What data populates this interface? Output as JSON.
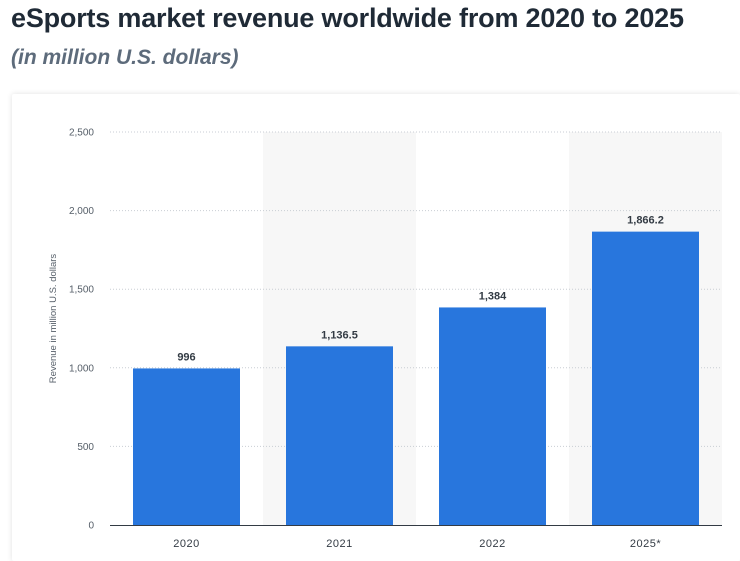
{
  "header": {
    "title": "eSports market revenue worldwide from 2020 to 2025",
    "subtitle": "(in million U.S. dollars)"
  },
  "chart_data": {
    "type": "bar",
    "categories": [
      "2020",
      "2021",
      "2022",
      "2025*"
    ],
    "values": [
      996,
      1136.5,
      1384,
      1866.2
    ],
    "value_labels": [
      "996",
      "1,136.5",
      "1,384",
      "1,866.2"
    ],
    "title": "eSports market revenue worldwide from 2020 to 2025",
    "subtitle": "(in million U.S. dollars)",
    "xlabel": "",
    "ylabel": "Revenue in million U.S. dollars",
    "ylim": [
      0,
      2500
    ],
    "yticks": [
      0,
      500,
      1000,
      1500,
      2000,
      2500
    ],
    "ytick_labels": [
      "0",
      "500",
      "1,000",
      "1,500",
      "2,000",
      "2,500"
    ],
    "grid": true,
    "legend": "none",
    "colors": {
      "bar": "#2876dd",
      "band": "#f7f7f7",
      "grid": "#c9ced4",
      "axis": "#333b44"
    }
  }
}
